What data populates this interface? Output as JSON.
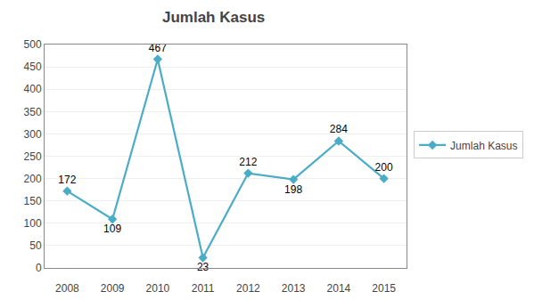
{
  "chart_data": {
    "type": "line",
    "title": "Jumlah Kasus",
    "x": [
      2008,
      2009,
      2010,
      2011,
      2012,
      2013,
      2014,
      2015
    ],
    "series": [
      {
        "name": "Jumlah Kasus",
        "color": "#4BACC6",
        "values": [
          172,
          109,
          467,
          23,
          212,
          198,
          284,
          200
        ]
      }
    ],
    "marker": "diamond",
    "xlim": [
      2007.5,
      2015.5
    ],
    "xticks": [
      2008,
      2009,
      2010,
      2011,
      2012,
      2013,
      2014,
      2015
    ],
    "ylim": [
      0,
      500
    ],
    "yticks": [
      0,
      50,
      100,
      150,
      200,
      250,
      300,
      350,
      400,
      450,
      500
    ],
    "grid": true,
    "legend": "right",
    "data_labels": true
  }
}
